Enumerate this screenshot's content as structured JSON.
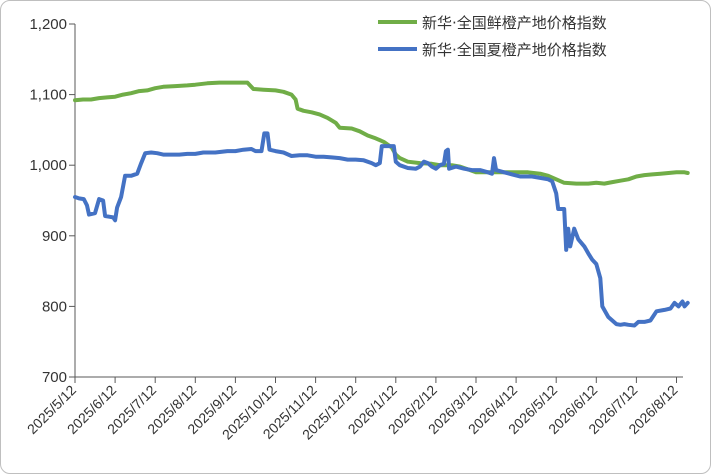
{
  "chart_data": {
    "type": "line",
    "title": "",
    "xlabel": "",
    "ylabel": "",
    "ylim": [
      700,
      1200
    ],
    "y_ticks": [
      700,
      800,
      900,
      1000,
      1100,
      1200
    ],
    "y_tick_labels": [
      "700",
      "800",
      "900",
      "1,000",
      "1,100",
      "1,200"
    ],
    "x_ticks": [
      "2025/5/12",
      "2025/6/12",
      "2025/7/12",
      "2025/8/12",
      "2025/9/12",
      "2025/10/12",
      "2025/11/12",
      "2025/12/12",
      "2026/1/12",
      "2026/2/12",
      "2026/3/12",
      "2026/4/12",
      "2026/5/12",
      "2026/6/12",
      "2026/7/12",
      "2026/8/12"
    ],
    "grid": false,
    "legend": "top-right",
    "series": [
      {
        "name": "新华·全国鲜橙产地价格指数",
        "color": "#70ad47",
        "points": [
          [
            0.0,
            1092
          ],
          [
            0.2,
            1093
          ],
          [
            0.4,
            1093
          ],
          [
            0.6,
            1095
          ],
          [
            0.8,
            1096
          ],
          [
            1.0,
            1097
          ],
          [
            1.2,
            1100
          ],
          [
            1.4,
            1102
          ],
          [
            1.6,
            1105
          ],
          [
            1.8,
            1106
          ],
          [
            2.0,
            1109
          ],
          [
            2.2,
            1111
          ],
          [
            2.5,
            1112
          ],
          [
            2.8,
            1113
          ],
          [
            3.0,
            1114
          ],
          [
            3.3,
            1116
          ],
          [
            3.6,
            1117
          ],
          [
            4.0,
            1117
          ],
          [
            4.3,
            1117
          ],
          [
            4.45,
            1108
          ],
          [
            4.7,
            1107
          ],
          [
            5.0,
            1106
          ],
          [
            5.2,
            1104
          ],
          [
            5.4,
            1100
          ],
          [
            5.5,
            1093
          ],
          [
            5.55,
            1080
          ],
          [
            5.7,
            1077
          ],
          [
            5.9,
            1075
          ],
          [
            6.1,
            1072
          ],
          [
            6.3,
            1067
          ],
          [
            6.5,
            1060
          ],
          [
            6.6,
            1053
          ],
          [
            6.9,
            1052
          ],
          [
            7.1,
            1048
          ],
          [
            7.3,
            1042
          ],
          [
            7.5,
            1038
          ],
          [
            7.7,
            1033
          ],
          [
            7.9,
            1025
          ],
          [
            8.0,
            1015
          ],
          [
            8.1,
            1010
          ],
          [
            8.3,
            1005
          ],
          [
            8.6,
            1003
          ],
          [
            8.9,
            1002
          ],
          [
            9.1,
            1000
          ],
          [
            9.4,
            1000
          ],
          [
            9.6,
            998
          ],
          [
            9.8,
            994
          ],
          [
            10.0,
            990
          ],
          [
            10.3,
            990
          ],
          [
            10.6,
            990
          ],
          [
            11.0,
            990
          ],
          [
            11.3,
            990
          ],
          [
            11.6,
            988
          ],
          [
            11.8,
            985
          ],
          [
            12.0,
            980
          ],
          [
            12.2,
            975
          ],
          [
            12.5,
            974
          ],
          [
            12.8,
            974
          ],
          [
            13.0,
            975
          ],
          [
            13.2,
            974
          ],
          [
            13.4,
            976
          ],
          [
            13.6,
            978
          ],
          [
            13.8,
            980
          ],
          [
            14.0,
            984
          ],
          [
            14.2,
            986
          ],
          [
            14.4,
            987
          ],
          [
            14.6,
            988
          ],
          [
            14.8,
            989
          ],
          [
            15.0,
            990
          ],
          [
            15.2,
            990
          ],
          [
            15.28,
            989
          ]
        ]
      },
      {
        "name": "新华·全国夏橙产地价格指数",
        "color": "#4472c4",
        "points": [
          [
            0.0,
            955
          ],
          [
            0.1,
            953
          ],
          [
            0.22,
            952
          ],
          [
            0.3,
            943
          ],
          [
            0.35,
            930
          ],
          [
            0.5,
            932
          ],
          [
            0.6,
            952
          ],
          [
            0.7,
            950
          ],
          [
            0.75,
            928
          ],
          [
            0.85,
            927
          ],
          [
            0.95,
            926
          ],
          [
            1.0,
            922
          ],
          [
            1.05,
            940
          ],
          [
            1.15,
            955
          ],
          [
            1.25,
            985
          ],
          [
            1.4,
            985
          ],
          [
            1.55,
            988
          ],
          [
            1.65,
            1003
          ],
          [
            1.75,
            1017
          ],
          [
            1.9,
            1018
          ],
          [
            2.05,
            1017
          ],
          [
            2.2,
            1015
          ],
          [
            2.4,
            1015
          ],
          [
            2.6,
            1015
          ],
          [
            2.8,
            1016
          ],
          [
            3.0,
            1016
          ],
          [
            3.2,
            1018
          ],
          [
            3.5,
            1018
          ],
          [
            3.8,
            1020
          ],
          [
            4.0,
            1020
          ],
          [
            4.2,
            1022
          ],
          [
            4.4,
            1023
          ],
          [
            4.5,
            1020
          ],
          [
            4.65,
            1020
          ],
          [
            4.72,
            1045
          ],
          [
            4.8,
            1045
          ],
          [
            4.85,
            1022
          ],
          [
            5.0,
            1020
          ],
          [
            5.2,
            1018
          ],
          [
            5.4,
            1013
          ],
          [
            5.6,
            1014
          ],
          [
            5.8,
            1014
          ],
          [
            6.0,
            1012
          ],
          [
            6.2,
            1012
          ],
          [
            6.4,
            1011
          ],
          [
            6.6,
            1010
          ],
          [
            6.8,
            1008
          ],
          [
            7.0,
            1008
          ],
          [
            7.2,
            1007
          ],
          [
            7.4,
            1003
          ],
          [
            7.5,
            1000
          ],
          [
            7.6,
            1003
          ],
          [
            7.65,
            1027
          ],
          [
            7.95,
            1027
          ],
          [
            8.0,
            1005
          ],
          [
            8.1,
            1000
          ],
          [
            8.3,
            996
          ],
          [
            8.5,
            995
          ],
          [
            8.6,
            998
          ],
          [
            8.7,
            1005
          ],
          [
            8.8,
            1003
          ],
          [
            8.9,
            998
          ],
          [
            9.0,
            995
          ],
          [
            9.1,
            1000
          ],
          [
            9.2,
            1002
          ],
          [
            9.25,
            1020
          ],
          [
            9.3,
            1022
          ],
          [
            9.33,
            995
          ],
          [
            9.5,
            998
          ],
          [
            9.7,
            995
          ],
          [
            9.9,
            993
          ],
          [
            10.1,
            993
          ],
          [
            10.3,
            990
          ],
          [
            10.4,
            988
          ],
          [
            10.45,
            1010
          ],
          [
            10.5,
            993
          ],
          [
            10.7,
            990
          ],
          [
            10.9,
            987
          ],
          [
            11.1,
            984
          ],
          [
            11.4,
            984
          ],
          [
            11.6,
            982
          ],
          [
            11.8,
            980
          ],
          [
            11.9,
            977
          ],
          [
            12.0,
            960
          ],
          [
            12.05,
            938
          ],
          [
            12.2,
            938
          ],
          [
            12.25,
            880
          ],
          [
            12.3,
            910
          ],
          [
            12.35,
            885
          ],
          [
            12.45,
            910
          ],
          [
            12.55,
            895
          ],
          [
            12.7,
            885
          ],
          [
            12.8,
            875
          ],
          [
            12.9,
            866
          ],
          [
            13.0,
            860
          ],
          [
            13.1,
            840
          ],
          [
            13.15,
            800
          ],
          [
            13.3,
            785
          ],
          [
            13.4,
            780
          ],
          [
            13.5,
            775
          ],
          [
            13.6,
            774
          ],
          [
            13.7,
            775
          ],
          [
            13.8,
            774
          ],
          [
            13.95,
            773
          ],
          [
            14.05,
            778
          ],
          [
            14.2,
            778
          ],
          [
            14.35,
            780
          ],
          [
            14.5,
            793
          ],
          [
            14.7,
            795
          ],
          [
            14.85,
            797
          ],
          [
            14.95,
            805
          ],
          [
            15.05,
            800
          ],
          [
            15.15,
            807
          ],
          [
            15.2,
            800
          ],
          [
            15.28,
            805
          ]
        ]
      }
    ]
  }
}
